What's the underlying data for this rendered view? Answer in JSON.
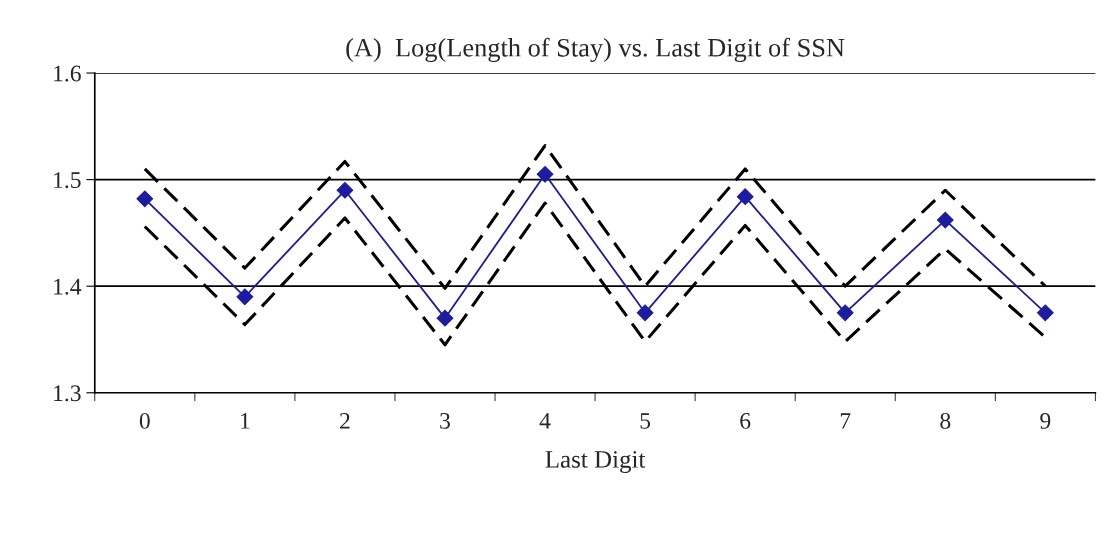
{
  "chart_data": {
    "type": "line",
    "title": "(A)  Log(Length of Stay) vs. Last Digit of SSN",
    "xlabel": "Last Digit",
    "categories": [
      "0",
      "1",
      "2",
      "3",
      "4",
      "5",
      "6",
      "7",
      "8",
      "9"
    ],
    "series": [
      {
        "color": "#1c1ca0",
        "marker": "diamond",
        "line_style": "solid",
        "values": [
          1.482,
          1.39,
          1.49,
          1.37,
          1.505,
          1.375,
          1.484,
          1.375,
          1.462,
          1.375
        ]
      },
      {
        "color": "#000000",
        "marker": "none",
        "line_style": "dashed",
        "values": [
          1.51,
          1.417,
          1.517,
          1.398,
          1.532,
          1.4,
          1.51,
          1.4,
          1.49,
          1.4
        ]
      },
      {
        "color": "#000000",
        "marker": "none",
        "line_style": "dashed",
        "values": [
          1.456,
          1.364,
          1.464,
          1.345,
          1.478,
          1.348,
          1.457,
          1.348,
          1.435,
          1.352
        ]
      }
    ],
    "ylim": [
      1.3,
      1.6
    ],
    "yticks": [
      1.3,
      1.4,
      1.5,
      1.6
    ],
    "grid": "y",
    "legend": false
  }
}
